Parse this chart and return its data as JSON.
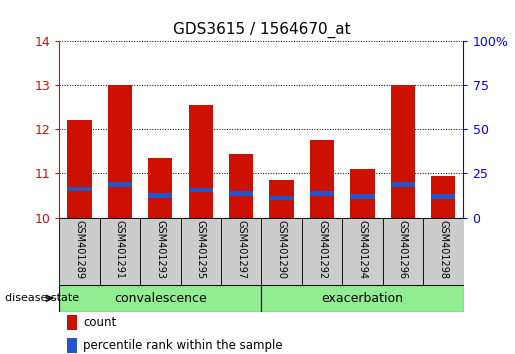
{
  "title": "GDS3615 / 1564670_at",
  "samples": [
    "GSM401289",
    "GSM401291",
    "GSM401293",
    "GSM401295",
    "GSM401297",
    "GSM401290",
    "GSM401292",
    "GSM401294",
    "GSM401296",
    "GSM401298"
  ],
  "count_values": [
    12.2,
    13.0,
    11.35,
    12.55,
    11.45,
    10.85,
    11.75,
    11.1,
    13.0,
    10.95
  ],
  "percentile_values": [
    10.65,
    10.75,
    10.5,
    10.63,
    10.55,
    10.45,
    10.55,
    10.48,
    10.75,
    10.48
  ],
  "bar_bottom": 10.0,
  "count_color": "#cc1100",
  "percentile_color": "#2255cc",
  "ylim_left": [
    10,
    14
  ],
  "ylim_right": [
    0,
    100
  ],
  "yticks_left": [
    10,
    11,
    12,
    13,
    14
  ],
  "yticks_right": [
    0,
    25,
    50,
    75,
    100
  ],
  "ytick_labels_right": [
    "0",
    "25",
    "50",
    "75",
    "100%"
  ],
  "group1_label": "convalescence",
  "group2_label": "exacerbation",
  "group_bg_color": "#90ee90",
  "sample_bg_color": "#cccccc",
  "legend_count": "count",
  "legend_percentile": "percentile rank within the sample",
  "disease_state_label": "disease state",
  "bar_width": 0.6,
  "pct_bar_height": 0.1
}
